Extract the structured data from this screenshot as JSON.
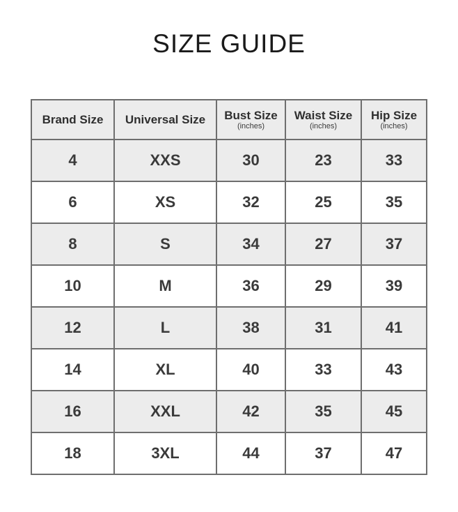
{
  "page": {
    "title": "SIZE GUIDE"
  },
  "colors": {
    "background": "#ffffff",
    "row_shade": "#ececec",
    "border": "#6e6e6e",
    "cell_text": "#3a3a3a",
    "title_text": "#1a1a1a"
  },
  "table": {
    "columns": [
      {
        "label": "Brand Size",
        "unit": ""
      },
      {
        "label": "Universal Size",
        "unit": ""
      },
      {
        "label": "Bust Size",
        "unit": "(inches)"
      },
      {
        "label": "Waist Size",
        "unit": "(inches)"
      },
      {
        "label": "Hip Size",
        "unit": "(inches)"
      }
    ],
    "rows": [
      [
        "4",
        "XXS",
        "30",
        "23",
        "33"
      ],
      [
        "6",
        "XS",
        "32",
        "25",
        "35"
      ],
      [
        "8",
        "S",
        "34",
        "27",
        "37"
      ],
      [
        "10",
        "M",
        "36",
        "29",
        "39"
      ],
      [
        "12",
        "L",
        "38",
        "31",
        "41"
      ],
      [
        "14",
        "XL",
        "40",
        "33",
        "43"
      ],
      [
        "16",
        "XXL",
        "42",
        "35",
        "45"
      ],
      [
        "18",
        "3XL",
        "44",
        "37",
        "47"
      ]
    ]
  },
  "chart_data": {
    "type": "table",
    "title": "SIZE GUIDE",
    "columns": [
      "Brand Size",
      "Universal Size",
      "Bust Size (inches)",
      "Waist Size (inches)",
      "Hip Size (inches)"
    ],
    "rows": [
      [
        "4",
        "XXS",
        30,
        23,
        33
      ],
      [
        "6",
        "XS",
        32,
        25,
        35
      ],
      [
        "8",
        "S",
        34,
        27,
        37
      ],
      [
        "10",
        "M",
        36,
        29,
        39
      ],
      [
        "12",
        "L",
        38,
        31,
        41
      ],
      [
        "14",
        "XL",
        40,
        33,
        43
      ],
      [
        "16",
        "XXL",
        42,
        35,
        45
      ],
      [
        "18",
        "3XL",
        44,
        37,
        47
      ]
    ],
    "layout": {
      "shaded_rows": "header and odd data rows (#ececec)",
      "grid": true
    }
  }
}
